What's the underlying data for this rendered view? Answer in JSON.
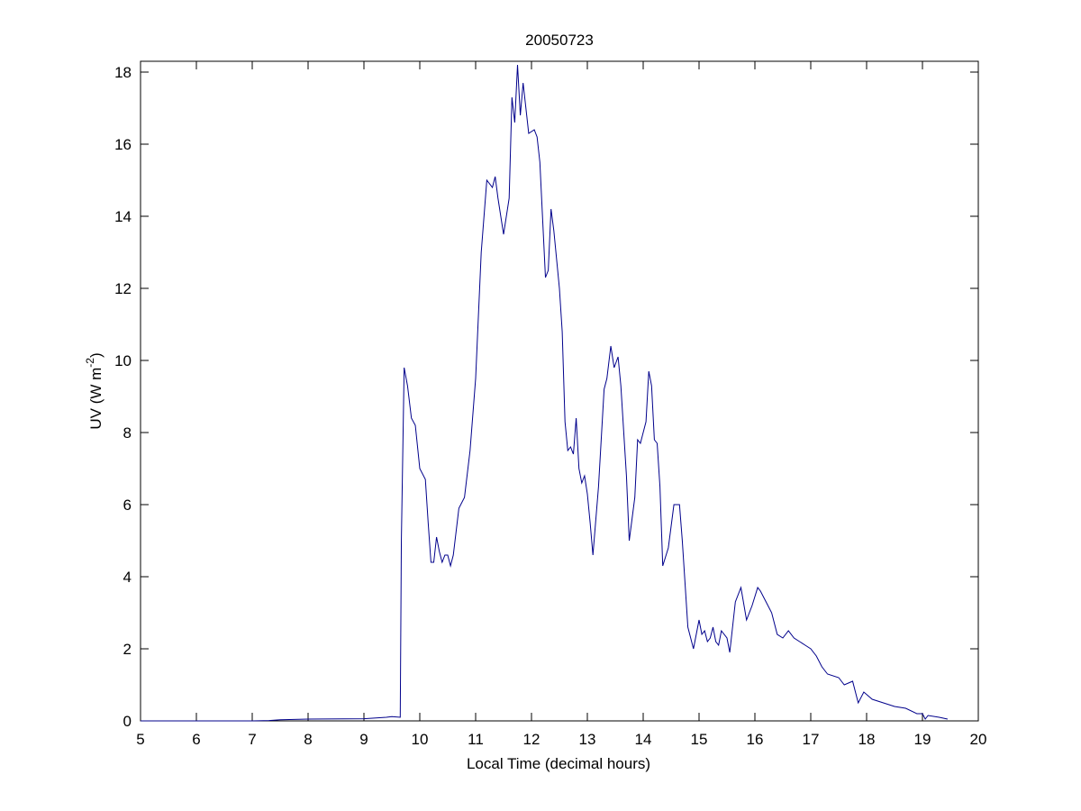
{
  "chart_data": {
    "type": "line",
    "title": "20050723",
    "xlabel": "Local Time (decimal hours)",
    "ylabel": [
      "UV (W m",
      "-2",
      ")"
    ],
    "xlim": [
      5,
      20
    ],
    "xticks": [
      5,
      6,
      7,
      8,
      9,
      10,
      11,
      12,
      13,
      14,
      15,
      16,
      17,
      18,
      19,
      20
    ],
    "ylim": [
      0,
      18.3
    ],
    "yticks": [
      0,
      2,
      4,
      6,
      8,
      10,
      12,
      14,
      16,
      18
    ],
    "grid": false,
    "series": [
      {
        "color": "#00008b",
        "x": [
          5,
          6,
          7,
          7.3,
          7.5,
          8,
          9,
          9.4,
          9.5,
          9.65,
          9.67,
          9.72,
          9.78,
          9.85,
          9.92,
          10.0,
          10.1,
          10.15,
          10.2,
          10.25,
          10.3,
          10.35,
          10.4,
          10.45,
          10.5,
          10.55,
          10.6,
          10.7,
          10.8,
          10.9,
          11.0,
          11.1,
          11.2,
          11.3,
          11.35,
          11.4,
          11.5,
          11.6,
          11.65,
          11.7,
          11.75,
          11.8,
          11.85,
          11.95,
          12.05,
          12.1,
          12.15,
          12.25,
          12.3,
          12.35,
          12.4,
          12.5,
          12.55,
          12.6,
          12.65,
          12.7,
          12.75,
          12.8,
          12.85,
          12.9,
          12.95,
          13.0,
          13.05,
          13.1,
          13.2,
          13.3,
          13.35,
          13.42,
          13.48,
          13.55,
          13.6,
          13.7,
          13.75,
          13.85,
          13.9,
          13.95,
          14.0,
          14.05,
          14.1,
          14.15,
          14.2,
          14.25,
          14.3,
          14.35,
          14.45,
          14.55,
          14.65,
          14.7,
          14.8,
          14.9,
          15.0,
          15.05,
          15.1,
          15.15,
          15.2,
          15.25,
          15.3,
          15.35,
          15.4,
          15.5,
          15.55,
          15.65,
          15.75,
          15.85,
          15.95,
          16.05,
          16.1,
          16.2,
          16.3,
          16.4,
          16.5,
          16.6,
          16.7,
          16.8,
          16.9,
          17.0,
          17.1,
          17.2,
          17.3,
          17.5,
          17.6,
          17.75,
          17.8,
          17.85,
          17.95,
          18.1,
          18.3,
          18.5,
          18.7,
          18.9,
          19.0,
          19.05,
          19.1,
          19.3,
          19.45
        ],
        "values": [
          0,
          0,
          0,
          0.01,
          0.03,
          0.05,
          0.06,
          0.1,
          0.12,
          0.1,
          5,
          9.8,
          9.3,
          8.4,
          8.2,
          7.0,
          6.7,
          5.5,
          4.4,
          4.4,
          5.1,
          4.7,
          4.4,
          4.6,
          4.6,
          4.3,
          4.6,
          5.9,
          6.2,
          7.5,
          9.5,
          13,
          15,
          14.8,
          15.1,
          14.5,
          13.5,
          14.5,
          17.3,
          16.6,
          18.2,
          16.8,
          17.7,
          16.3,
          16.4,
          16.2,
          15.5,
          12.3,
          12.5,
          14.2,
          13.6,
          12,
          10.8,
          8.3,
          7.5,
          7.6,
          7.4,
          8.4,
          7.0,
          6.6,
          6.8,
          6.3,
          5.5,
          4.6,
          6.5,
          9.2,
          9.5,
          10.4,
          9.8,
          10.1,
          9.3,
          6.8,
          5.0,
          6.2,
          7.8,
          7.7,
          8.0,
          8.3,
          9.7,
          9.3,
          7.8,
          7.7,
          6.5,
          4.3,
          4.8,
          6.0,
          6.0,
          5.0,
          2.6,
          2.0,
          2.8,
          2.4,
          2.5,
          2.2,
          2.3,
          2.6,
          2.2,
          2.1,
          2.5,
          2.3,
          1.9,
          3.3,
          3.7,
          2.8,
          3.2,
          3.7,
          3.6,
          3.3,
          3.0,
          2.4,
          2.3,
          2.5,
          2.3,
          2.2,
          2.1,
          2.0,
          1.8,
          1.5,
          1.3,
          1.2,
          1.0,
          1.1,
          0.8,
          0.5,
          0.8,
          0.6,
          0.5,
          0.4,
          0.35,
          0.2,
          0.2,
          0.05,
          0.15,
          0.1,
          0.05
        ]
      }
    ]
  }
}
